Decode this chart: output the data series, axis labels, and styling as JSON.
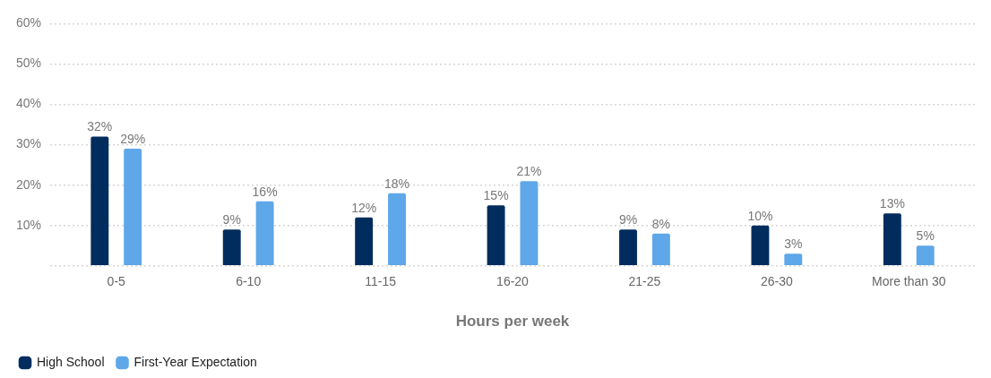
{
  "chart_data": {
    "type": "bar",
    "xlabel": "Hours per week",
    "categories": [
      "0-5",
      "6-10",
      "11-15",
      "16-20",
      "21-25",
      "26-30",
      "More than 30"
    ],
    "series": [
      {
        "name": "High School",
        "color": "#002d5e",
        "values": [
          32,
          9,
          12,
          15,
          9,
          10,
          13
        ],
        "value_labels": [
          "32%",
          "9%",
          "12%",
          "15%",
          "9%",
          "10%",
          "13%"
        ]
      },
      {
        "name": "First-Year Expectation",
        "color": "#5ea7e8",
        "values": [
          29,
          16,
          18,
          21,
          8,
          3,
          5
        ],
        "value_labels": [
          "29%",
          "16%",
          "18%",
          "21%",
          "8%",
          "3%",
          "5%"
        ]
      }
    ],
    "ylim": [
      0,
      60
    ],
    "yticks": [
      {
        "value": 0,
        "label": null
      },
      {
        "value": 10,
        "label": "10%"
      },
      {
        "value": 20,
        "label": "20%"
      },
      {
        "value": 30,
        "label": "30%"
      },
      {
        "value": 40,
        "label": "40%"
      },
      {
        "value": 50,
        "label": "50%"
      },
      {
        "value": 60,
        "label": "60%"
      }
    ],
    "grid": "y",
    "legend": "bottom left"
  }
}
